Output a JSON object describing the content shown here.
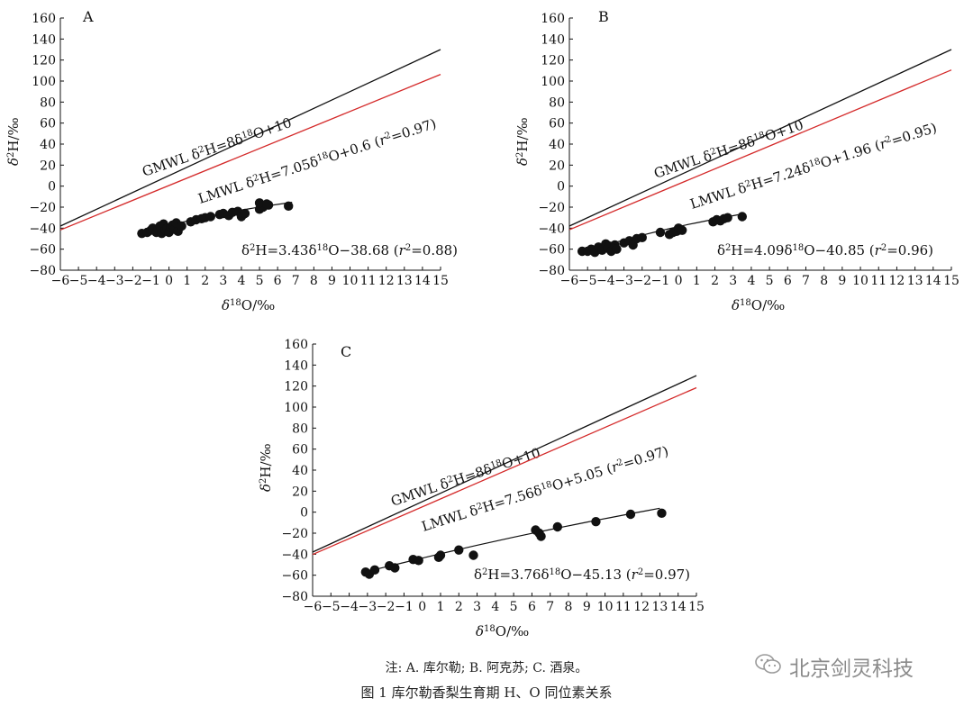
{
  "chart_data": [
    {
      "type": "scatter",
      "panel": "A",
      "xlabel": "δ18O/‰",
      "ylabel": "δ2H/‰",
      "xlim": [
        -6,
        15
      ],
      "ylim": [
        -80,
        160
      ],
      "xticks": [
        -6,
        -5,
        -4,
        -3,
        -2,
        -1,
        0,
        1,
        2,
        3,
        4,
        5,
        6,
        7,
        8,
        9,
        10,
        11,
        12,
        13,
        14,
        15
      ],
      "yticks": [
        -80,
        -60,
        -40,
        -20,
        0,
        20,
        40,
        60,
        80,
        100,
        120,
        140,
        160
      ],
      "lines": [
        {
          "name": "GMWL",
          "slope": 8,
          "intercept": 10,
          "color": "#111111",
          "label_parts": [
            "GMWL δ",
            "2",
            "H=8δ",
            "18",
            "O+10"
          ]
        },
        {
          "name": "LMWL",
          "slope": 7.05,
          "intercept": 0.6,
          "color": "#d42a2a",
          "label_parts": [
            "LMWL δ",
            "2",
            "H=7.05δ",
            "18",
            "O+0.6 (",
            "r",
            "2",
            "=0.97)"
          ]
        }
      ],
      "fit": {
        "slope": 3.43,
        "intercept": -38.68,
        "range": [
          -1.5,
          6.8
        ],
        "label_parts": [
          "δ",
          "2",
          "H=3.43δ",
          "18",
          "O−38.68 (",
          "r",
          "2",
          "=0.88)"
        ]
      },
      "points": [
        [
          -1.5,
          -45
        ],
        [
          -1.2,
          -44
        ],
        [
          -1.0,
          -42
        ],
        [
          -0.9,
          -40
        ],
        [
          -0.7,
          -44
        ],
        [
          -0.6,
          -41
        ],
        [
          -0.5,
          -38
        ],
        [
          -0.4,
          -45
        ],
        [
          -0.3,
          -36
        ],
        [
          -0.2,
          -42
        ],
        [
          -0.1,
          -40
        ],
        [
          0.0,
          -44
        ],
        [
          0.1,
          -39
        ],
        [
          0.2,
          -37
        ],
        [
          0.3,
          -41
        ],
        [
          0.4,
          -35
        ],
        [
          0.5,
          -43
        ],
        [
          0.7,
          -38
        ],
        [
          1.2,
          -34
        ],
        [
          1.5,
          -32
        ],
        [
          1.8,
          -31
        ],
        [
          2.0,
          -30
        ],
        [
          2.3,
          -29
        ],
        [
          2.8,
          -27
        ],
        [
          3.0,
          -26
        ],
        [
          3.3,
          -28
        ],
        [
          3.5,
          -25
        ],
        [
          3.8,
          -24
        ],
        [
          4.0,
          -29
        ],
        [
          4.2,
          -26
        ],
        [
          5.0,
          -22
        ],
        [
          5.2,
          -20
        ],
        [
          5.5,
          -18
        ],
        [
          5.0,
          -16
        ],
        [
          5.4,
          -17
        ],
        [
          6.6,
          -19
        ]
      ]
    },
    {
      "type": "scatter",
      "panel": "B",
      "xlabel": "δ18O/‰",
      "ylabel": "δ2H/‰",
      "xlim": [
        -6,
        15
      ],
      "ylim": [
        -80,
        160
      ],
      "xticks": [
        -6,
        -5,
        -4,
        -3,
        -2,
        -1,
        0,
        1,
        2,
        3,
        4,
        5,
        6,
        7,
        8,
        9,
        10,
        11,
        12,
        13,
        14,
        15
      ],
      "yticks": [
        -80,
        -60,
        -40,
        -20,
        0,
        20,
        40,
        60,
        80,
        100,
        120,
        140,
        160
      ],
      "lines": [
        {
          "name": "GMWL",
          "slope": 8,
          "intercept": 10,
          "color": "#111111",
          "label_parts": [
            "GMWL δ",
            "2",
            "H=8δ",
            "18",
            "O+10"
          ]
        },
        {
          "name": "LMWL",
          "slope": 7.24,
          "intercept": 1.96,
          "color": "#d42a2a",
          "label_parts": [
            "LMWL δ",
            "2",
            "H=7.24δ",
            "18",
            "O+1.96 (",
            "r",
            "2",
            "=0.95)"
          ]
        }
      ],
      "fit": {
        "slope": 4.09,
        "intercept": -40.85,
        "range": [
          -5.3,
          3.5
        ],
        "label_parts": [
          "δ",
          "2",
          "H=4.09δ",
          "18",
          "O−40.85 (",
          "r",
          "2",
          "=0.96)"
        ]
      },
      "points": [
        [
          -5.3,
          -62
        ],
        [
          -5.0,
          -62
        ],
        [
          -4.8,
          -60
        ],
        [
          -4.6,
          -63
        ],
        [
          -4.4,
          -58
        ],
        [
          -4.2,
          -61
        ],
        [
          -4.0,
          -55
        ],
        [
          -3.9,
          -59
        ],
        [
          -3.8,
          -57
        ],
        [
          -3.7,
          -62
        ],
        [
          -3.5,
          -56
        ],
        [
          -3.4,
          -60
        ],
        [
          -3.0,
          -54
        ],
        [
          -2.7,
          -52
        ],
        [
          -2.5,
          -56
        ],
        [
          -2.3,
          -50
        ],
        [
          -2.0,
          -49
        ],
        [
          -1.0,
          -44
        ],
        [
          -0.5,
          -46
        ],
        [
          -0.3,
          -44
        ],
        [
          -0.1,
          -43
        ],
        [
          0.0,
          -40
        ],
        [
          0.2,
          -42
        ],
        [
          1.9,
          -34
        ],
        [
          2.1,
          -32
        ],
        [
          2.3,
          -33
        ],
        [
          2.5,
          -31
        ],
        [
          2.7,
          -30
        ],
        [
          3.5,
          -29
        ]
      ]
    },
    {
      "type": "scatter",
      "panel": "C",
      "xlabel": "δ18O/‰",
      "ylabel": "δ2H/‰",
      "xlim": [
        -6,
        15
      ],
      "ylim": [
        -80,
        160
      ],
      "xticks": [
        -6,
        -5,
        -4,
        -3,
        -2,
        -1,
        0,
        1,
        2,
        3,
        4,
        5,
        6,
        7,
        8,
        9,
        10,
        11,
        12,
        13,
        14,
        15
      ],
      "yticks": [
        -80,
        -60,
        -40,
        -20,
        0,
        20,
        40,
        60,
        80,
        100,
        120,
        140,
        160
      ],
      "lines": [
        {
          "name": "GMWL",
          "slope": 8,
          "intercept": 10,
          "color": "#111111",
          "label_parts": [
            "GMWL δ",
            "2",
            "H=8δ",
            "18",
            "O+10"
          ]
        },
        {
          "name": "LMWL",
          "slope": 7.56,
          "intercept": 5.05,
          "color": "#d42a2a",
          "label_parts": [
            "LMWL δ",
            "2",
            "H=7.56δ",
            "18",
            "O+5.05 (",
            "r",
            "2",
            "=0.97)"
          ]
        }
      ],
      "fit": {
        "slope": 3.76,
        "intercept": -45.13,
        "range": [
          -3.1,
          13.0
        ],
        "label_parts": [
          "δ",
          "2",
          "H=3.76δ",
          "18",
          "O−45.13 (",
          "r",
          "2",
          "=0.97)"
        ]
      },
      "points": [
        [
          -3.1,
          -57
        ],
        [
          -2.9,
          -59
        ],
        [
          -2.6,
          -55
        ],
        [
          -1.8,
          -51
        ],
        [
          -1.5,
          -53
        ],
        [
          -0.5,
          -45
        ],
        [
          -0.2,
          -46
        ],
        [
          0.9,
          -43
        ],
        [
          1.0,
          -41
        ],
        [
          2.0,
          -36
        ],
        [
          2.8,
          -41
        ],
        [
          6.2,
          -17
        ],
        [
          6.4,
          -20
        ],
        [
          6.5,
          -23
        ],
        [
          7.4,
          -14
        ],
        [
          9.5,
          -9
        ],
        [
          11.4,
          -2
        ],
        [
          13.1,
          -1
        ]
      ]
    }
  ],
  "caption": {
    "note": "注: A. 库尔勒; B. 阿克苏; C. 酒泉。",
    "title": "图 1    库尔勒香梨生育期 H、O 同位素关系"
  },
  "watermark": {
    "text": "北京剑灵科技",
    "icon": "wechat-icon"
  }
}
